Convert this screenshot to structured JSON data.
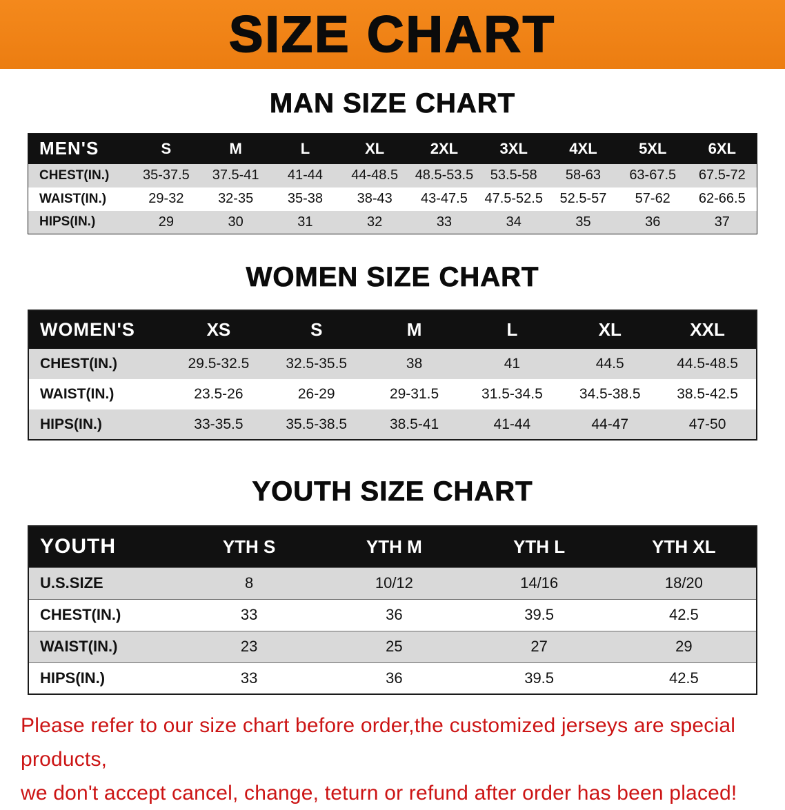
{
  "colors": {
    "banner-orange": "#f4891c",
    "header-black": "#111111",
    "row-gray": "#d9d9d9",
    "disclaimer-red": "#cc1414"
  },
  "banner": {
    "title": "SIZE CHART"
  },
  "sections": {
    "men": {
      "heading": "MAN SIZE CHART",
      "table": {
        "header": [
          "MEN'S",
          "S",
          "M",
          "L",
          "XL",
          "2XL",
          "3XL",
          "4XL",
          "5XL",
          "6XL"
        ],
        "rows": [
          [
            "CHEST(IN.)",
            "35-37.5",
            "37.5-41",
            "41-44",
            "44-48.5",
            "48.5-53.5",
            "53.5-58",
            "58-63",
            "63-67.5",
            "67.5-72"
          ],
          [
            "WAIST(IN.)",
            "29-32",
            "32-35",
            "35-38",
            "38-43",
            "43-47.5",
            "47.5-52.5",
            "52.5-57",
            "57-62",
            "62-66.5"
          ],
          [
            "HIPS(IN.)",
            "29",
            "30",
            "31",
            "32",
            "33",
            "34",
            "35",
            "36",
            "37"
          ]
        ]
      }
    },
    "women": {
      "heading": "WOMEN SIZE CHART",
      "table": {
        "header": [
          "WOMEN'S",
          "XS",
          "S",
          "M",
          "L",
          "XL",
          "XXL"
        ],
        "rows": [
          [
            "CHEST(IN.)",
            "29.5-32.5",
            "32.5-35.5",
            "38",
            "41",
            "44.5",
            "44.5-48.5"
          ],
          [
            "WAIST(IN.)",
            "23.5-26",
            "26-29",
            "29-31.5",
            "31.5-34.5",
            "34.5-38.5",
            "38.5-42.5"
          ],
          [
            "HIPS(IN.)",
            "33-35.5",
            "35.5-38.5",
            "38.5-41",
            "41-44",
            "44-47",
            "47-50"
          ]
        ]
      }
    },
    "youth": {
      "heading": "YOUTH SIZE CHART",
      "table": {
        "header": [
          "YOUTH",
          "YTH S",
          "YTH M",
          "YTH L",
          "YTH XL"
        ],
        "rows": [
          [
            "U.S.SIZE",
            "8",
            "10/12",
            "14/16",
            "18/20"
          ],
          [
            "CHEST(IN.)",
            "33",
            "36",
            "39.5",
            "42.5"
          ],
          [
            "WAIST(IN.)",
            "23",
            "25",
            "27",
            "29"
          ],
          [
            "HIPS(IN.)",
            "33",
            "36",
            "39.5",
            "42.5"
          ]
        ]
      }
    }
  },
  "disclaimer": {
    "lines": [
      "Please refer to our size chart before order,the customized jerseys are special products,",
      "we don't accept cancel, change, teturn or refund after order has been placed!"
    ]
  }
}
